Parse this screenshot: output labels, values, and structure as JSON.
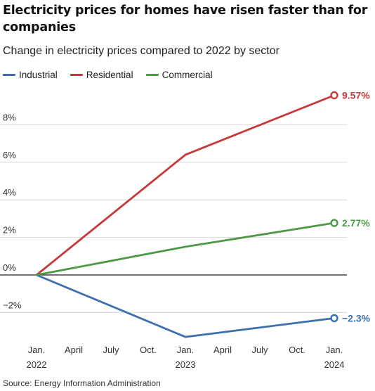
{
  "header": {
    "title": "Electricity prices for homes have risen faster than for companies",
    "subtitle": "Change in electricity prices compared to 2022 by sector",
    "source": "Source: Energy Information Administration"
  },
  "chart_data": {
    "type": "line",
    "title": "Electricity prices for homes have risen faster than for companies",
    "subtitle": "Change in electricity prices compared to 2022 by sector",
    "xlabel": "",
    "ylabel": "",
    "x": [
      "Jan. 2022",
      "Jan. 2023",
      "Jan. 2024"
    ],
    "x_ticks": [
      {
        "line1": "Jan.",
        "line2": "2022",
        "month": 0
      },
      {
        "line1": "April",
        "line2": "",
        "month": 3
      },
      {
        "line1": "July",
        "line2": "",
        "month": 6
      },
      {
        "line1": "Oct.",
        "line2": "",
        "month": 9
      },
      {
        "line1": "Jan.",
        "line2": "2023",
        "month": 12
      },
      {
        "line1": "April",
        "line2": "",
        "month": 15
      },
      {
        "line1": "July",
        "line2": "",
        "month": 18
      },
      {
        "line1": "Oct.",
        "line2": "",
        "month": 21
      },
      {
        "line1": "Jan.",
        "line2": "2024",
        "month": 24
      }
    ],
    "y_ticks": [
      -2,
      0,
      2,
      4,
      6,
      8
    ],
    "y_tick_labels": [
      "−2%",
      "0%",
      "2%",
      "4%",
      "6%",
      "8%"
    ],
    "ylim": [
      -3.5,
      10
    ],
    "xlim_months": [
      0,
      24
    ],
    "grid": true,
    "legend_position": "top-left",
    "series": [
      {
        "name": "Industrial",
        "color": "#3a6fb0",
        "months": [
          0,
          12,
          24
        ],
        "values": [
          0,
          -3.3,
          -2.3
        ],
        "end_label": "−2.3%"
      },
      {
        "name": "Residential",
        "color": "#c8373a",
        "months": [
          0,
          12,
          24
        ],
        "values": [
          0,
          6.4,
          9.57
        ],
        "end_label": "9.57%"
      },
      {
        "name": "Commercial",
        "color": "#4c9a45",
        "months": [
          0,
          12,
          24
        ],
        "values": [
          0,
          1.5,
          2.77
        ],
        "end_label": "2.77%"
      }
    ]
  }
}
